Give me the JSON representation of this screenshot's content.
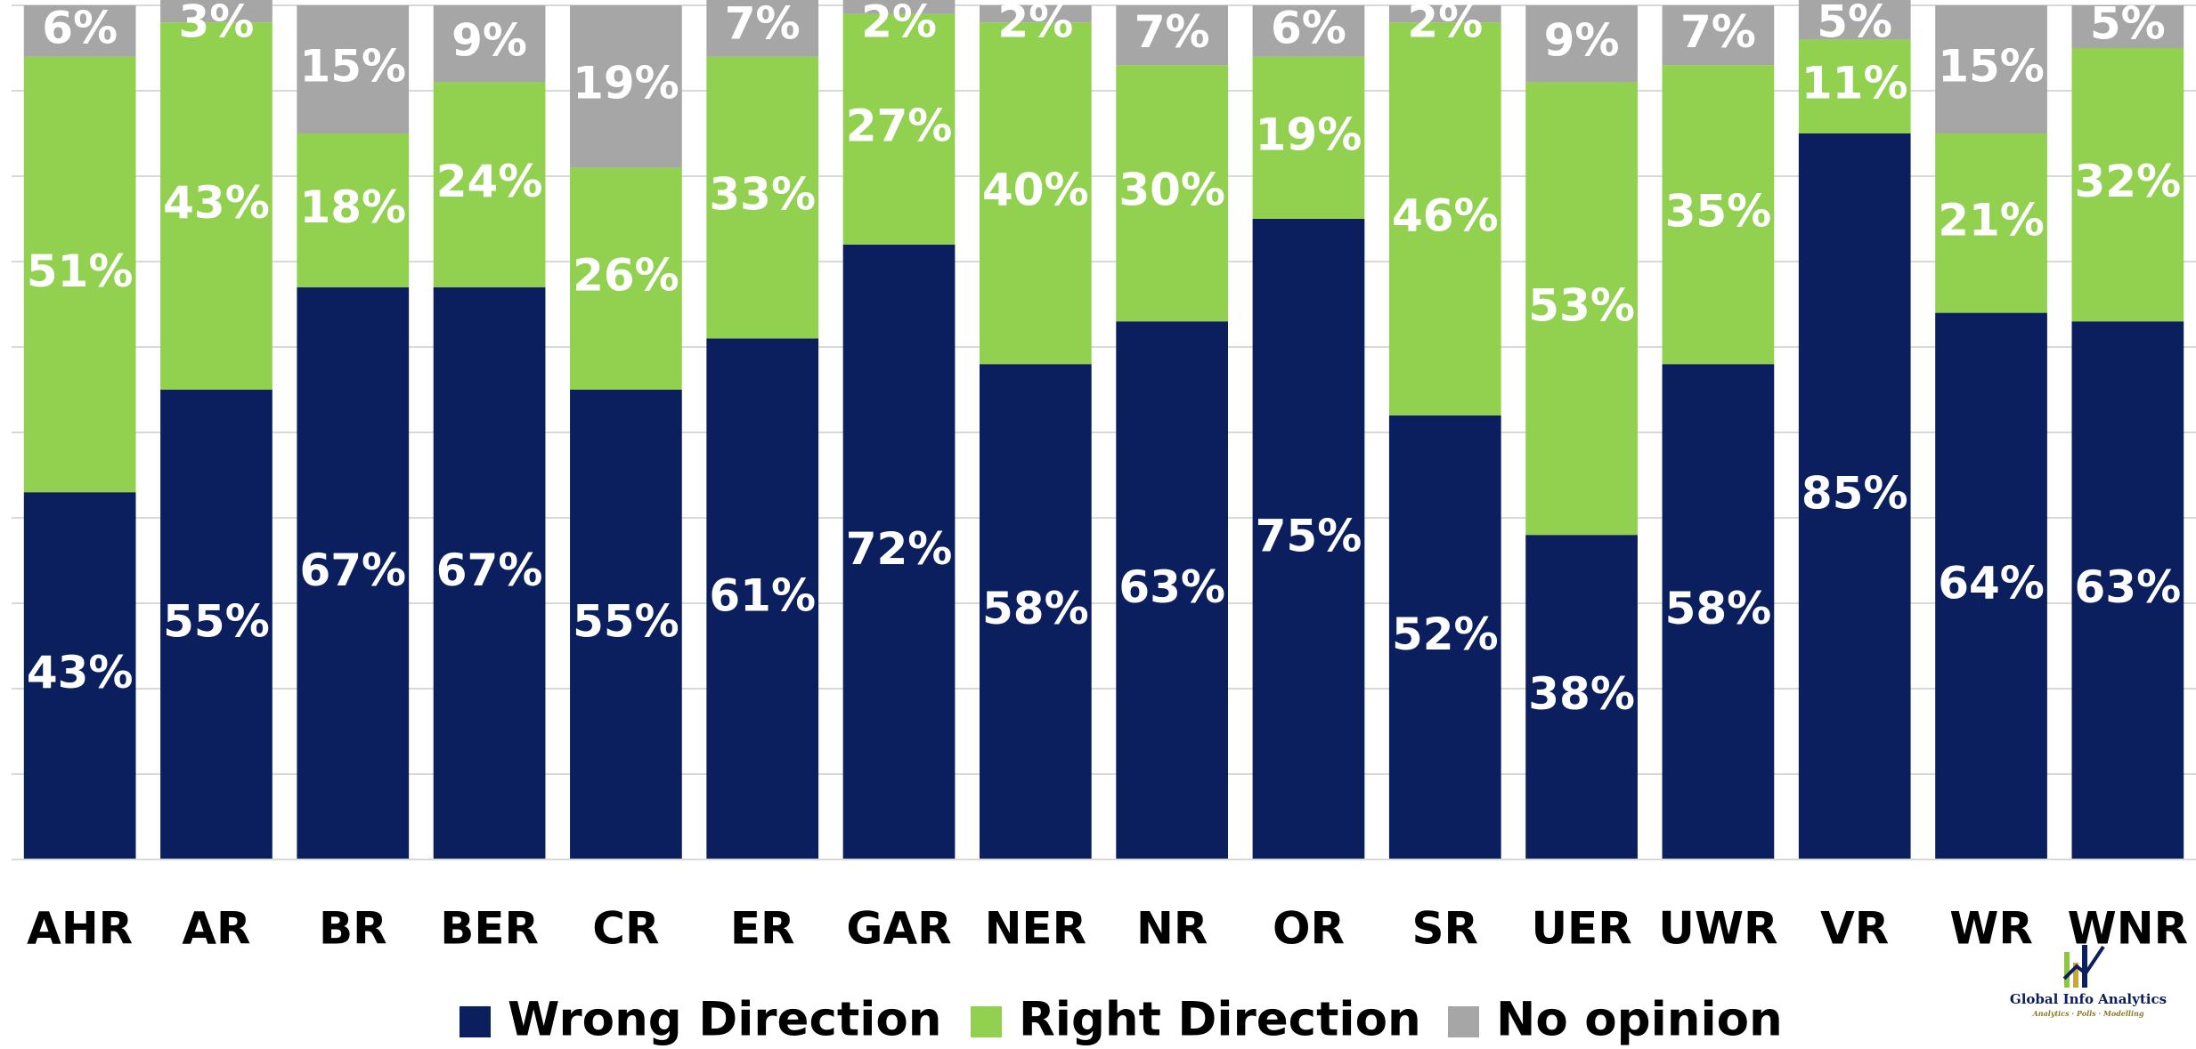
{
  "chart_data": {
    "type": "stacked_bar",
    "categories": [
      "AHR",
      "AR",
      "BR",
      "BER",
      "CR",
      "ER",
      "GAR",
      "NER",
      "NR",
      "OR",
      "SR",
      "UER",
      "UWR",
      "VR",
      "WR",
      "WNR"
    ],
    "series": [
      {
        "name": "Wrong Direction",
        "color": "#0b1f5e",
        "values": [
          43,
          55,
          67,
          67,
          55,
          61,
          72,
          58,
          63,
          75,
          52,
          38,
          58,
          85,
          64,
          63
        ],
        "value_labels": [
          "43%",
          "55%",
          "67%",
          "67%",
          "55%",
          "61%",
          "72%",
          "58%",
          "63%",
          "75%",
          "52%",
          "38%",
          "58%",
          "85%",
          "64%",
          "63%"
        ]
      },
      {
        "name": "Right Direction",
        "color": "#92d050",
        "values": [
          51,
          43,
          18,
          24,
          26,
          33,
          27,
          40,
          30,
          19,
          46,
          53,
          35,
          11,
          21,
          32
        ],
        "value_labels": [
          "51%",
          "43%",
          "18%",
          "24%",
          "26%",
          "33%",
          "27%",
          "40%",
          "30%",
          "19%",
          "46%",
          "53%",
          "35%",
          "11%",
          "21%",
          "32%"
        ]
      },
      {
        "name": "No opinion",
        "color": "#a6a6a6",
        "values": [
          6,
          3,
          15,
          9,
          19,
          7,
          2,
          2,
          7,
          6,
          2,
          9,
          7,
          5,
          15,
          5
        ],
        "value_labels": [
          "6%",
          "3%",
          "15%",
          "9%",
          "19%",
          "7%",
          "2%",
          "2%",
          "7%",
          "6%",
          "2%",
          "9%",
          "7%",
          "5%",
          "15%",
          "5%"
        ]
      }
    ],
    "ylim": [
      0,
      100
    ],
    "yticks": [
      0,
      10,
      20,
      30,
      40,
      50,
      60,
      70,
      80,
      90,
      100
    ],
    "grid": true,
    "legend": "bottom"
  },
  "logo": {
    "title": "Global Info Analytics",
    "tagline": "Analytics · Polls · Modelling"
  }
}
